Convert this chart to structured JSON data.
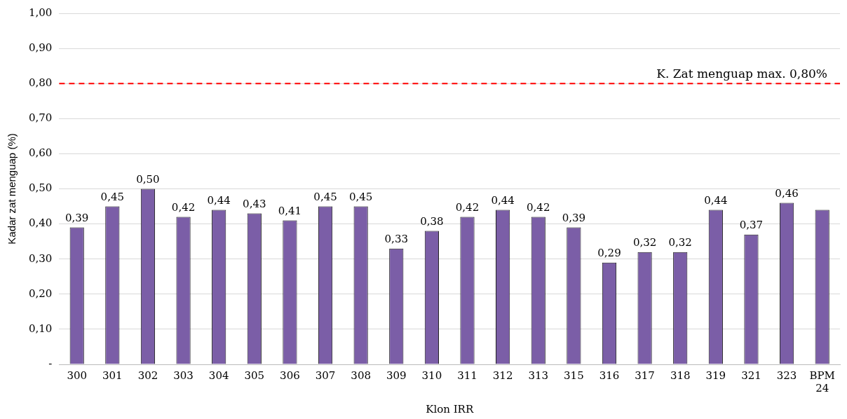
{
  "chart_data": {
    "type": "bar",
    "xlabel": "Klon IRR",
    "ylabel": "Kadar zat menguap (%)",
    "categories": [
      "300",
      "301",
      "302",
      "303",
      "304",
      "305",
      "306",
      "307",
      "308",
      "309",
      "310",
      "311",
      "312",
      "313",
      "315",
      "316",
      "317",
      "318",
      "319",
      "321",
      "323",
      "BPM 24"
    ],
    "values": [
      0.39,
      0.45,
      0.5,
      0.42,
      0.44,
      0.43,
      0.41,
      0.45,
      0.45,
      0.33,
      0.38,
      0.42,
      0.44,
      0.42,
      0.39,
      0.29,
      0.32,
      0.32,
      0.44,
      0.37,
      0.46,
      0.44
    ],
    "value_labels": [
      "0,39",
      "0,45",
      "0,50",
      "0,42",
      "0,44",
      "0,43",
      "0,41",
      "0,45",
      "0,45",
      "0,33",
      "0,38",
      "0,42",
      "0,44",
      "0,42",
      "0,39",
      "0,29",
      "0,32",
      "0,32",
      "0,44",
      "0,37",
      "0,46",
      null
    ],
    "color": "#7b5ea7",
    "ylim": [
      0,
      1
    ],
    "yticks": [
      {
        "value": 0,
        "label": "-"
      },
      {
        "value": 0.1,
        "label": "0,10"
      },
      {
        "value": 0.2,
        "label": "0,20"
      },
      {
        "value": 0.3,
        "label": "0,30"
      },
      {
        "value": 0.4,
        "label": "0,40"
      },
      {
        "value": 0.5,
        "label": "0,50"
      },
      {
        "value": 0.6,
        "label": "0,60"
      },
      {
        "value": 0.7,
        "label": "0,70"
      },
      {
        "value": 0.8,
        "label": "0,80"
      },
      {
        "value": 0.9,
        "label": "0,90"
      },
      {
        "value": 1,
        "label": "1,00"
      }
    ],
    "ref_lines": [
      {
        "axis": "y",
        "value": 0.8,
        "label": "K. Zat menguap max. 0,80%",
        "color": "#ff0000",
        "line_style": "dashed"
      }
    ],
    "grid": "y",
    "legend": false
  }
}
